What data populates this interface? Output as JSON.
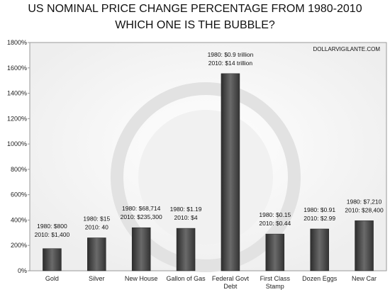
{
  "chart_data": {
    "type": "bar",
    "title": "US NOMINAL PRICE CHANGE PERCENTAGE FROM 1980-2010",
    "subtitle": "WHICH ONE IS THE BUBBLE?",
    "watermark": "DOLLARVIGILANTE.COM",
    "categories": [
      "Gold",
      "Silver",
      "New House",
      "Gallon of Gas",
      "Federal Govt Debt",
      "First Class Stamp",
      "Dozen Eggs",
      "New Car"
    ],
    "values": [
      175,
      260,
      340,
      335,
      1555,
      290,
      330,
      395
    ],
    "annotations": [
      [
        "1980: $800",
        "2010: $1,400"
      ],
      [
        "1980: $15",
        "2010: 40"
      ],
      [
        "1980: $68,714",
        "2010: $235,300"
      ],
      [
        "1980: $1.19",
        "2010: $4"
      ],
      [
        "1980: $0.9 trillion",
        "2010: $14 trillion"
      ],
      [
        "1980: $0.15",
        "2010: $0.44"
      ],
      [
        "1980: $0.91",
        "2010: $2.99"
      ],
      [
        "1980: $7,210",
        "2010: $28,400"
      ]
    ],
    "color": "#4a4a4a",
    "ylim": [
      0,
      1800
    ],
    "yticks": [
      {
        "value": 0,
        "label": "0%"
      },
      {
        "value": 200,
        "label": "200%"
      },
      {
        "value": 400,
        "label": "400%"
      },
      {
        "value": 600,
        "label": "600%"
      },
      {
        "value": 800,
        "label": "800%"
      },
      {
        "value": 1000,
        "label": "1000%"
      },
      {
        "value": 1200,
        "label": "1200%"
      },
      {
        "value": 1400,
        "label": "1400%"
      },
      {
        "value": 1600,
        "label": "1600%"
      },
      {
        "value": 1800,
        "label": "1800%"
      }
    ],
    "grid": false
  }
}
